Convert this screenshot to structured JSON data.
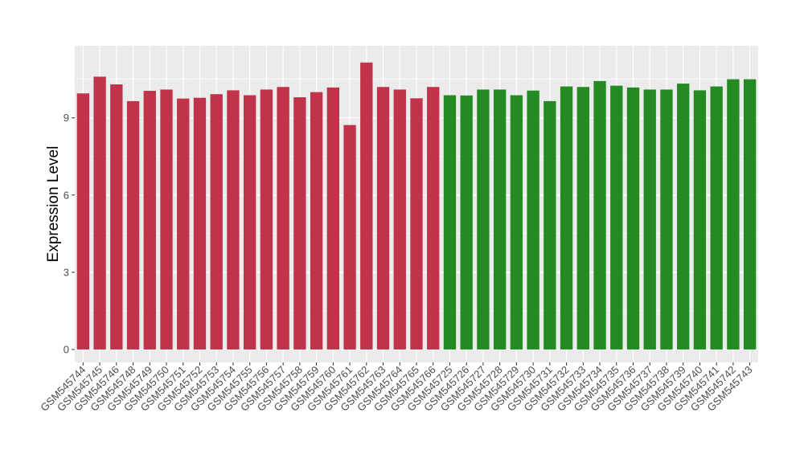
{
  "chart_data": {
    "type": "bar",
    "xlabel": "",
    "ylabel": "Expression Level",
    "ylim": [
      -0.5,
      11.8
    ],
    "yticks": [
      0,
      3,
      6,
      9
    ],
    "grid": true,
    "background": "#ebebeb",
    "gridline_color": "#ffffff",
    "categories": [
      "GSM545744",
      "GSM545745",
      "GSM545746",
      "GSM545748",
      "GSM545749",
      "GSM545750",
      "GSM545751",
      "GSM545752",
      "GSM545753",
      "GSM545754",
      "GSM545755",
      "GSM545756",
      "GSM545757",
      "GSM545758",
      "GSM545759",
      "GSM545760",
      "GSM545761",
      "GSM545762",
      "GSM545763",
      "GSM545764",
      "GSM545765",
      "GSM545766",
      "GSM545725",
      "GSM545726",
      "GSM545727",
      "GSM545728",
      "GSM545729",
      "GSM545730",
      "GSM545731",
      "GSM545732",
      "GSM545733",
      "GSM545734",
      "GSM545735",
      "GSM545736",
      "GSM545737",
      "GSM545738",
      "GSM545739",
      "GSM545740",
      "GSM545741",
      "GSM545742",
      "GSM545743"
    ],
    "values": [
      9.95,
      10.6,
      10.3,
      9.65,
      10.05,
      10.1,
      9.75,
      9.78,
      9.92,
      10.07,
      9.88,
      10.1,
      10.2,
      9.8,
      10.0,
      10.18,
      8.72,
      11.15,
      10.2,
      10.1,
      9.76,
      10.2,
      9.88,
      9.87,
      10.1,
      10.1,
      9.88,
      10.06,
      9.65,
      10.22,
      10.2,
      10.43,
      10.25,
      10.18,
      10.1,
      10.1,
      10.33,
      10.07,
      10.22,
      10.5,
      10.5
    ],
    "bar_colors": [
      "#c0334b",
      "#c0334b",
      "#c0334b",
      "#c0334b",
      "#c0334b",
      "#c0334b",
      "#c0334b",
      "#c0334b",
      "#c0334b",
      "#c0334b",
      "#c0334b",
      "#c0334b",
      "#c0334b",
      "#c0334b",
      "#c0334b",
      "#c0334b",
      "#c0334b",
      "#c0334b",
      "#c0334b",
      "#c0334b",
      "#c0334b",
      "#c0334b",
      "#238b22",
      "#238b22",
      "#238b22",
      "#238b22",
      "#238b22",
      "#238b22",
      "#238b22",
      "#238b22",
      "#238b22",
      "#238b22",
      "#238b22",
      "#238b22",
      "#238b22",
      "#238b22",
      "#238b22",
      "#238b22",
      "#238b22",
      "#238b22",
      "#238b22"
    ]
  }
}
